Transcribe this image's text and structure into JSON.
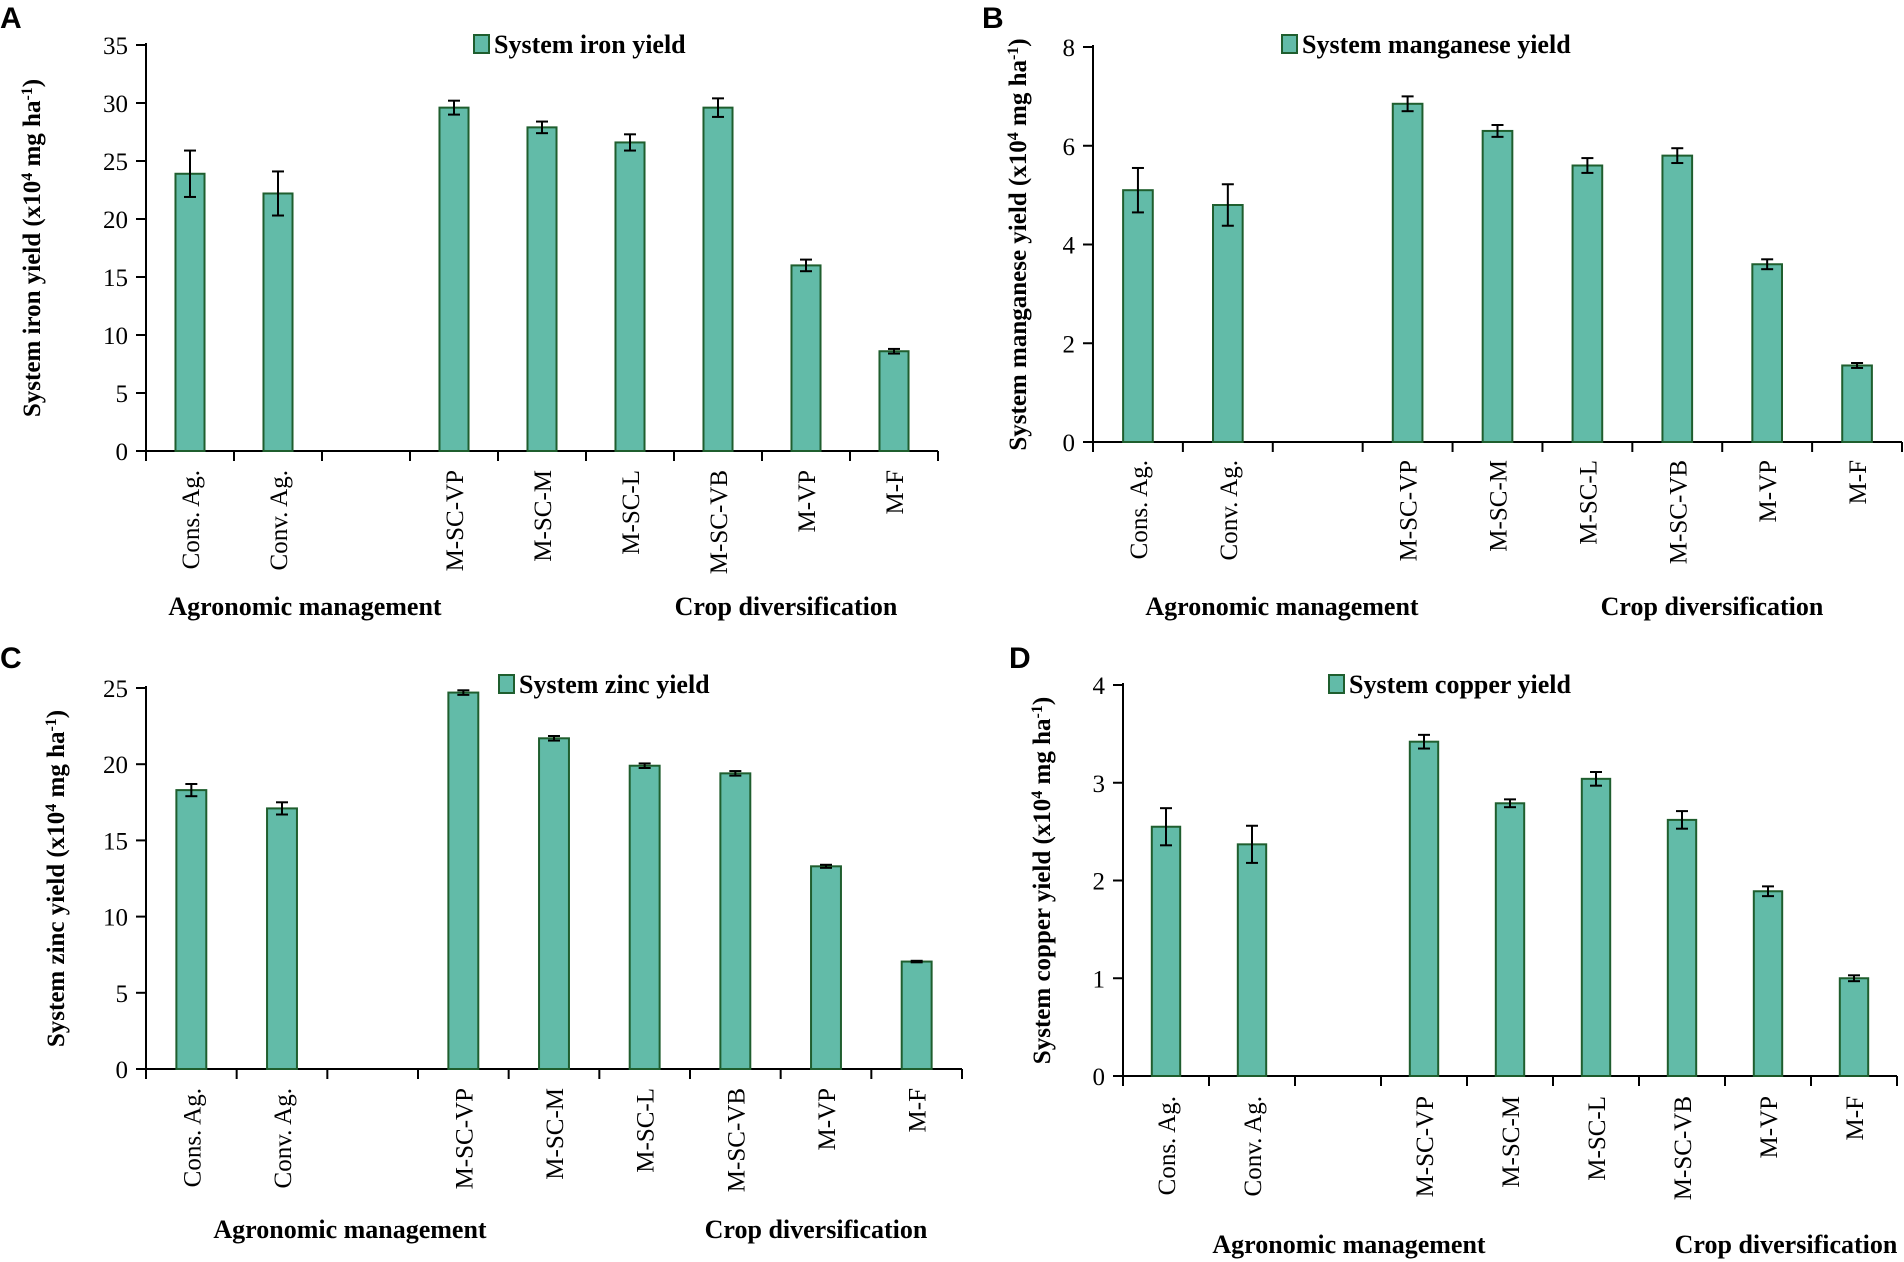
{
  "colors": {
    "bar_fill": "#62bba8",
    "bar_stroke": "#1f5e2e",
    "axis": "#000000"
  },
  "groups": [
    "Agronomic management",
    "Crop diversification"
  ],
  "chart_data": [
    {
      "type": "bar",
      "panel": "A",
      "legend": "System iron yield",
      "ylabel": "System iron yield (x10",
      "ylabel_exp": "4",
      "ylabel_unit": " mg ha",
      "ylabel_unit_exp": "-1",
      "ylabel_close": ")",
      "ylim": [
        0,
        35
      ],
      "yticks": [
        0,
        5,
        10,
        15,
        20,
        25,
        30,
        35
      ],
      "categories": [
        "Cons. Ag.",
        "Conv. Ag.",
        "",
        "M-SC-VP",
        "M-SC-M",
        "M-SC-L",
        "M-SC-VB",
        "M-VP",
        "M-F"
      ],
      "values": [
        23.9,
        22.2,
        null,
        29.6,
        27.9,
        26.6,
        29.6,
        16.0,
        8.6
      ],
      "errors": [
        2.0,
        1.9,
        null,
        0.6,
        0.5,
        0.7,
        0.8,
        0.5,
        0.2
      ]
    },
    {
      "type": "bar",
      "panel": "B",
      "legend": "System manganese yield",
      "ylabel": "System manganese yield (x10",
      "ylabel_exp": "4",
      "ylabel_unit": " mg ha",
      "ylabel_unit_exp": "-1",
      "ylabel_close": ")",
      "ylim": [
        0,
        8
      ],
      "yticks": [
        0,
        2,
        4,
        6,
        8
      ],
      "categories": [
        "Cons. Ag.",
        "Conv. Ag.",
        "",
        "M-SC-VP",
        "M-SC-M",
        "M-SC-L",
        "M-SC-VB",
        "M-VP",
        "M-F"
      ],
      "values": [
        5.1,
        4.8,
        null,
        6.85,
        6.3,
        5.6,
        5.8,
        3.6,
        1.55
      ],
      "errors": [
        0.45,
        0.42,
        null,
        0.15,
        0.12,
        0.15,
        0.15,
        0.1,
        0.05
      ]
    },
    {
      "type": "bar",
      "panel": "C",
      "legend": "System zinc yield",
      "ylabel": "System zinc yield (x10",
      "ylabel_exp": "4",
      "ylabel_unit": " mg ha",
      "ylabel_unit_exp": "-1",
      "ylabel_close": ")",
      "ylim": [
        0,
        25
      ],
      "yticks": [
        0,
        5,
        10,
        15,
        20,
        25
      ],
      "categories": [
        "Cons. Ag.",
        "Conv. Ag.",
        "",
        "M-SC-VP",
        "M-SC-M",
        "M-SC-L",
        "M-SC-VB",
        "M-VP",
        "M-F"
      ],
      "values": [
        18.3,
        17.1,
        null,
        24.7,
        21.7,
        19.9,
        19.4,
        13.3,
        7.05
      ],
      "errors": [
        0.4,
        0.4,
        null,
        0.15,
        0.15,
        0.15,
        0.15,
        0.1,
        0.05
      ]
    },
    {
      "type": "bar",
      "panel": "D",
      "legend": "System copper yield",
      "ylabel": "System copper yield (x10",
      "ylabel_exp": "4",
      "ylabel_unit": " mg ha",
      "ylabel_unit_exp": "-1",
      "ylabel_close": ")",
      "ylim": [
        0,
        4
      ],
      "yticks": [
        0,
        1,
        2,
        3,
        4
      ],
      "categories": [
        "Cons. Ag.",
        "Conv. Ag.",
        "",
        "M-SC-VP",
        "M-SC-M",
        "M-SC-L",
        "M-SC-VB",
        "M-VP",
        "M-F"
      ],
      "values": [
        2.55,
        2.37,
        null,
        3.42,
        2.79,
        3.04,
        2.62,
        1.89,
        1.0
      ],
      "errors": [
        0.19,
        0.19,
        null,
        0.07,
        0.04,
        0.07,
        0.09,
        0.05,
        0.03
      ]
    }
  ]
}
